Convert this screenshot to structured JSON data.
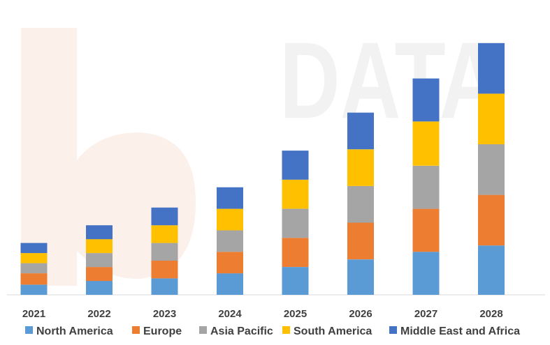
{
  "watermark": {
    "text": "DATA",
    "logo_color": "#f7e3d8",
    "text_color": "#ededed"
  },
  "chart_data": {
    "type": "bar",
    "stacked": true,
    "title": "",
    "xlabel": "",
    "ylabel": "",
    "ylim": [
      0,
      100
    ],
    "grid": false,
    "legend_position": "bottom",
    "categories": [
      "2021",
      "2022",
      "2023",
      "2024",
      "2025",
      "2026",
      "2027",
      "2028"
    ],
    "series": [
      {
        "name": "North America",
        "color": "#5b9bd5",
        "values": [
          4,
          5.5,
          6.5,
          8.5,
          11,
          14,
          17,
          19.5
        ]
      },
      {
        "name": "Europe",
        "color": "#ed7d31",
        "values": [
          4.5,
          5.5,
          7,
          8.5,
          11.5,
          14.5,
          17,
          20
        ]
      },
      {
        "name": "Asia Pacific",
        "color": "#a5a5a5",
        "values": [
          4,
          5.5,
          7,
          8.5,
          11.5,
          14.5,
          17,
          20
        ]
      },
      {
        "name": "South America",
        "color": "#ffc000",
        "values": [
          4,
          5.5,
          7,
          8.5,
          11.5,
          14.5,
          17.5,
          20
        ]
      },
      {
        "name": "Middle East and Africa",
        "color": "#4472c4",
        "values": [
          4,
          5.5,
          7,
          8.5,
          11.5,
          14.5,
          17,
          20
        ]
      }
    ]
  }
}
